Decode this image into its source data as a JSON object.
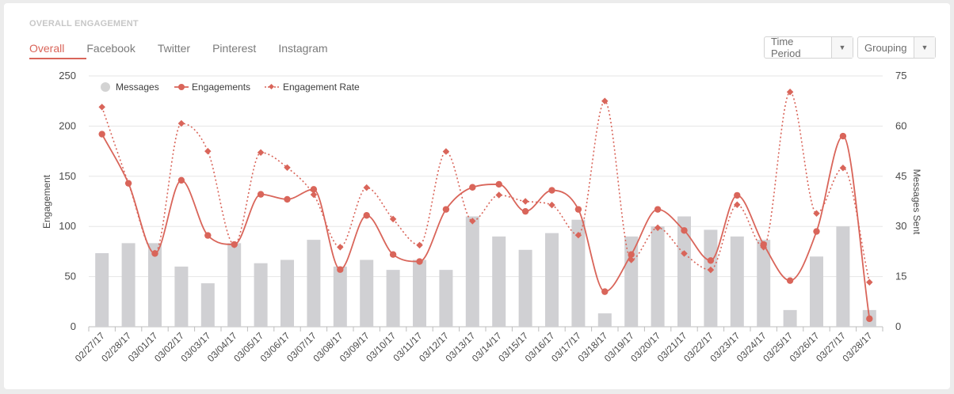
{
  "header": {
    "title": "OVERALL ENGAGEMENT"
  },
  "tabs": [
    {
      "label": "Overall",
      "active": true
    },
    {
      "label": "Facebook"
    },
    {
      "label": "Twitter"
    },
    {
      "label": "Pinterest"
    },
    {
      "label": "Instagram"
    }
  ],
  "controls": {
    "time_period": {
      "label": "Time Period",
      "arrow_icon": "caret-down-icon"
    },
    "grouping": {
      "label": "Grouping",
      "arrow_icon": "caret-down-icon"
    }
  },
  "colors": {
    "accent": "#d9655a",
    "bars": "#d0d0d3",
    "grid": "#e6e6e6"
  },
  "chart_data": {
    "type": "bar",
    "categories": [
      "02/27/17",
      "02/28/17",
      "03/01/17",
      "03/02/17",
      "03/03/17",
      "03/04/17",
      "03/05/17",
      "03/06/17",
      "03/07/17",
      "03/08/17",
      "03/09/17",
      "03/10/17",
      "03/11/17",
      "03/12/17",
      "03/13/17",
      "03/14/17",
      "03/15/17",
      "03/16/17",
      "03/17/17",
      "03/18/17",
      "03/19/17",
      "03/20/17",
      "03/21/17",
      "03/22/17",
      "03/23/17",
      "03/24/17",
      "03/25/17",
      "03/26/17",
      "03/27/17",
      "03/28/17"
    ],
    "series": [
      {
        "name": "Messages",
        "type": "bar",
        "axis": "right",
        "values": [
          22,
          25,
          25,
          18,
          13,
          25,
          19,
          20,
          26,
          18,
          20,
          17,
          20,
          17,
          33,
          27,
          23,
          28,
          32,
          4,
          27,
          30,
          33,
          29,
          27,
          26,
          5,
          21,
          30,
          5
        ]
      },
      {
        "name": "Engagements",
        "type": "line",
        "axis": "left",
        "values": [
          192,
          143,
          73,
          146,
          91,
          82,
          132,
          127,
          137,
          57,
          111,
          72,
          65,
          117,
          139,
          142,
          115,
          136,
          117,
          35,
          72,
          117,
          96,
          66,
          131,
          82,
          46,
          95,
          190,
          8
        ]
      },
      {
        "name": "Engagement Rate",
        "type": "line",
        "style": "dotted",
        "axis": "right",
        "values": [
          65.7,
          42.9,
          22,
          60.8,
          52.5,
          24.5,
          52.1,
          47.6,
          39.5,
          23.8,
          41.6,
          32.2,
          24.4,
          52.4,
          31.6,
          39.4,
          37.5,
          36.4,
          27.4,
          67.5,
          20,
          29.6,
          21.9,
          17,
          36.5,
          23.8,
          70.2,
          33.9,
          47.5,
          13.3
        ]
      }
    ],
    "y_left": {
      "label": "Engagement",
      "min": 0,
      "max": 250,
      "ticks": [
        0,
        50,
        100,
        150,
        200,
        250
      ]
    },
    "y_right": {
      "label": "Messages Sent",
      "min": 0,
      "max": 75,
      "ticks": [
        0,
        15,
        30,
        45,
        60,
        75
      ]
    },
    "grid": true,
    "legend": "top-left"
  }
}
